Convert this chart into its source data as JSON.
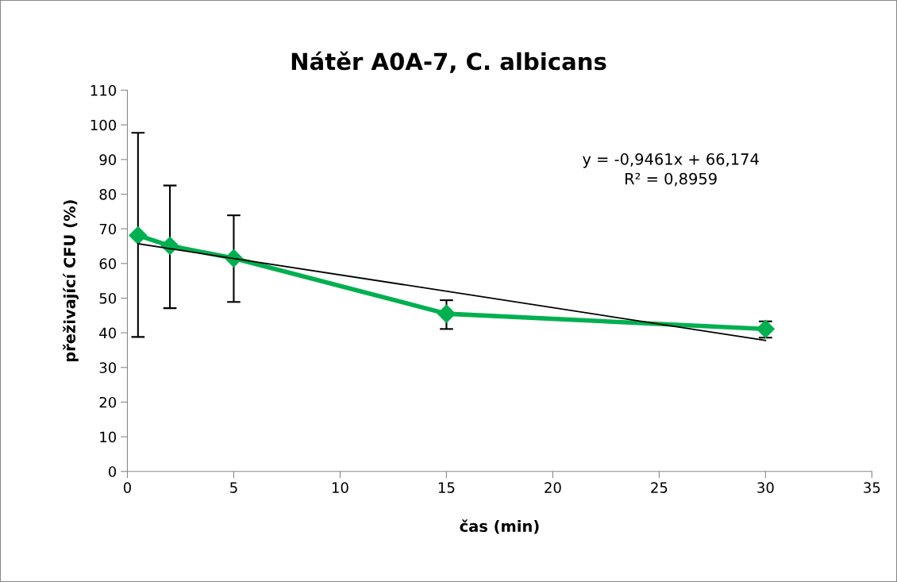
{
  "chart_data": {
    "type": "line",
    "title": "Nátěr A0A-7, C. albicans",
    "xlabel": "čas (min)",
    "ylabel": "přeživající CFU (%)",
    "x": [
      0.5,
      2,
      5,
      15,
      30
    ],
    "series": [
      {
        "color": "#00b050",
        "marker": "diamond",
        "values": [
          68.1,
          65.1,
          61.5,
          45.5,
          41.1
        ],
        "errors": [
          [
            38.8,
            97.7
          ],
          [
            47.1,
            82.5
          ],
          [
            48.9,
            73.9
          ],
          [
            41.1,
            49.4
          ],
          [
            38.6,
            43.3
          ]
        ]
      },
      {
        "color": "#000000",
        "marker": "none",
        "x": [
          0.5,
          30
        ],
        "values": [
          65.7,
          37.8
        ]
      }
    ],
    "annotations": [
      "y = -0,9461x + 66,174\nR² = 0,8959"
    ],
    "xlim": [
      0,
      35
    ],
    "xticks": [
      0,
      5,
      10,
      15,
      20,
      25,
      30,
      35
    ],
    "ylim": [
      0,
      110
    ],
    "yticks": [
      0,
      10,
      20,
      30,
      40,
      50,
      60,
      70,
      80,
      90,
      100,
      110
    ],
    "grid": false,
    "legend": false
  }
}
